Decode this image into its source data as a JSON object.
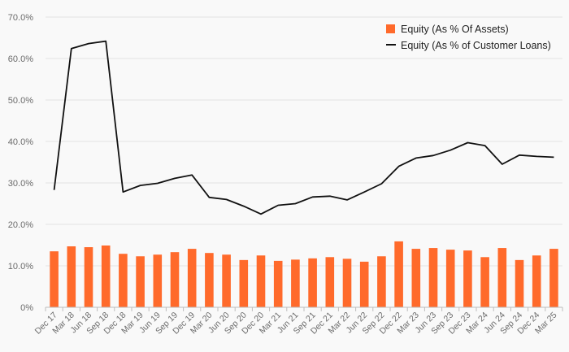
{
  "chart_data": {
    "type": "bar",
    "title": "",
    "xlabel": "",
    "ylabel": "",
    "ylim": [
      0,
      70
    ],
    "y_ticks": [
      "0%",
      "10.0%",
      "20.0%",
      "30.0%",
      "40.0%",
      "50.0%",
      "60.0%",
      "70.0%"
    ],
    "categories": [
      "Dec 17",
      "Mar 18",
      "Jun 18",
      "Sep 18",
      "Dec 18",
      "Mar 19",
      "Jun 19",
      "Sep 19",
      "Dec 19",
      "Mar 20",
      "Jun 20",
      "Sep 20",
      "Dec 20",
      "Mar 21",
      "Jun 21",
      "Sep 21",
      "Dec 21",
      "Mar 22",
      "Jun 22",
      "Sep 22",
      "Dec 22",
      "Mar 23",
      "Jun 23",
      "Sep 23",
      "Dec 23",
      "Mar 24",
      "Jun 24",
      "Sep 24",
      "Dec 24",
      "Mar 25"
    ],
    "grid": true,
    "legend_position": "top-right",
    "series": [
      {
        "name": "Equity (As % Of Assets)",
        "type": "bar",
        "color": "#ff6a2b",
        "values": [
          13.5,
          14.7,
          14.5,
          14.9,
          12.9,
          12.3,
          12.7,
          13.3,
          14.1,
          13.1,
          12.7,
          11.4,
          12.5,
          11.2,
          11.5,
          11.8,
          12.1,
          11.7,
          11.0,
          12.3,
          15.9,
          14.1,
          14.3,
          13.9,
          13.7,
          12.1,
          14.3,
          11.4,
          12.5,
          14.1
        ]
      },
      {
        "name": "Equity (As % of Customer Loans)",
        "type": "line",
        "color": "#111111",
        "values": [
          28.3,
          62.4,
          63.6,
          64.2,
          27.8,
          29.4,
          29.9,
          31.1,
          31.9,
          26.5,
          26.0,
          24.4,
          22.5,
          24.6,
          25.0,
          26.6,
          26.8,
          25.9,
          27.8,
          29.8,
          34.0,
          36.0,
          36.6,
          37.9,
          39.7,
          39.0,
          34.5,
          36.7,
          36.4,
          36.2
        ]
      }
    ]
  }
}
